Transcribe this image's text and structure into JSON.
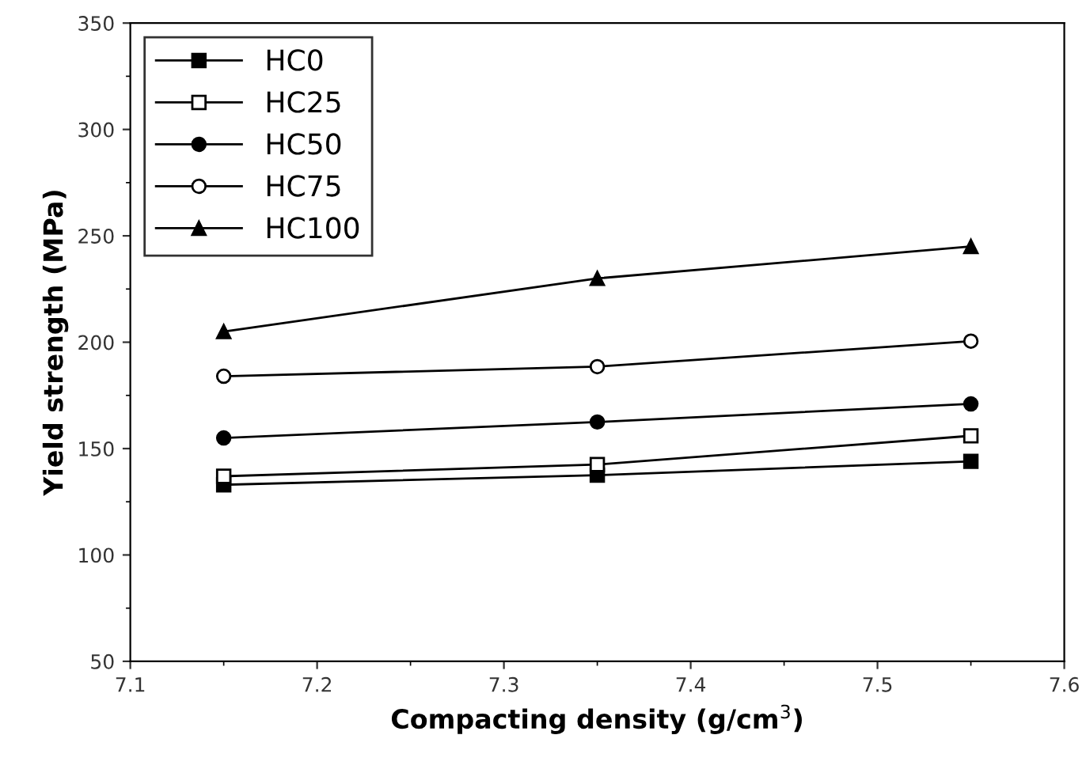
{
  "chart_data": {
    "type": "line",
    "xlabel": "Compacting density (g/cm$^{3}$)",
    "ylabel": "Yield strength (MPa)",
    "x": [
      7.15,
      7.35,
      7.55
    ],
    "series": [
      {
        "name": "HC0",
        "color": "#000000",
        "marker": "square",
        "values": [
          133,
          137.5,
          144
        ]
      },
      {
        "name": "HC25",
        "color": "#000000",
        "marker": "square",
        "values": [
          137,
          142.5,
          156
        ]
      },
      {
        "name": "HC50",
        "color": "#000000",
        "marker": "circle",
        "values": [
          155,
          162.5,
          171
        ]
      },
      {
        "name": "HC75",
        "color": "#000000",
        "marker": "circle",
        "values": [
          184,
          188.5,
          200.5
        ]
      },
      {
        "name": "HC100",
        "color": "#000000",
        "marker": "triangle",
        "values": [
          205,
          230,
          245
        ]
      }
    ],
    "xlim": [
      7.1,
      7.6
    ],
    "xticks": [
      7.1,
      7.2,
      7.3,
      7.4,
      7.5,
      7.6
    ],
    "ylim": [
      50,
      350
    ],
    "yticks": [
      50,
      100,
      150,
      200,
      250,
      300,
      350
    ],
    "grid": false,
    "legend": "top left",
    "line_style": "solid"
  }
}
